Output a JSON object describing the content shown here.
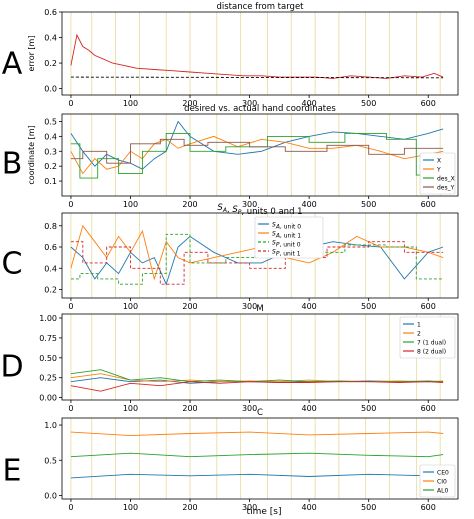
{
  "figure": {
    "xlabel": "time [s]",
    "xticks": [
      0,
      100,
      200,
      300,
      400,
      500,
      600
    ],
    "xlim": [
      -15,
      650
    ]
  },
  "chart_data": [
    {
      "panel": "A",
      "type": "line",
      "title": "distance from target",
      "ylabel": "error [m]",
      "ylim": [
        -0.05,
        0.6
      ],
      "yticks": [
        "0.0",
        "0.2",
        "0.4",
        "0.6"
      ],
      "legend": [],
      "series": [
        {
          "color": "#d62728",
          "x": [
            0,
            10,
            20,
            30,
            40,
            55,
            70,
            90,
            110,
            140,
            170,
            200,
            230,
            260,
            290,
            320,
            350,
            380,
            410,
            440,
            470,
            500,
            530,
            560,
            590,
            610,
            625
          ],
          "y": [
            0.18,
            0.42,
            0.33,
            0.3,
            0.26,
            0.23,
            0.2,
            0.18,
            0.16,
            0.15,
            0.14,
            0.13,
            0.12,
            0.11,
            0.1,
            0.1,
            0.09,
            0.09,
            0.09,
            0.08,
            0.1,
            0.09,
            0.08,
            0.1,
            0.09,
            0.12,
            0.09
          ]
        },
        {
          "color": "#000000",
          "dashed": true,
          "x": [
            0,
            625
          ],
          "y": [
            0.09,
            0.085
          ]
        }
      ]
    },
    {
      "panel": "B",
      "type": "line",
      "title": "desired vs. actual hand coordinates",
      "ylabel": "coordinate [m]",
      "ylim": [
        0.0,
        0.55
      ],
      "yticks": [
        "0.1",
        "0.2",
        "0.3",
        "0.4",
        "0.5"
      ],
      "legend": [
        "X",
        "Y",
        "des_X",
        "des_Y"
      ],
      "series": [
        {
          "name": "X",
          "color": "#1f77b4",
          "x": [
            0,
            20,
            40,
            60,
            80,
            100,
            120,
            140,
            160,
            180,
            200,
            240,
            280,
            320,
            360,
            400,
            440,
            480,
            520,
            560,
            600,
            625
          ],
          "y": [
            0.42,
            0.3,
            0.2,
            0.28,
            0.24,
            0.22,
            0.18,
            0.25,
            0.3,
            0.5,
            0.4,
            0.3,
            0.28,
            0.3,
            0.36,
            0.4,
            0.43,
            0.42,
            0.4,
            0.38,
            0.42,
            0.45
          ]
        },
        {
          "name": "Y",
          "color": "#ff7f0e",
          "x": [
            0,
            20,
            40,
            60,
            80,
            100,
            120,
            140,
            160,
            180,
            200,
            240,
            280,
            320,
            360,
            400,
            440,
            480,
            520,
            560,
            600,
            625
          ],
          "y": [
            0.3,
            0.15,
            0.25,
            0.18,
            0.2,
            0.3,
            0.25,
            0.35,
            0.38,
            0.32,
            0.35,
            0.4,
            0.33,
            0.38,
            0.36,
            0.32,
            0.32,
            0.34,
            0.3,
            0.25,
            0.28,
            0.3
          ]
        },
        {
          "name": "des_X",
          "color": "#2ca02c",
          "x": [
            0,
            15,
            15,
            45,
            45,
            80,
            80,
            120,
            120,
            160,
            160,
            200,
            200,
            260,
            260,
            330,
            330,
            400,
            400,
            460,
            460,
            530,
            530,
            580,
            580,
            625
          ],
          "y": [
            0.35,
            0.35,
            0.12,
            0.12,
            0.25,
            0.25,
            0.15,
            0.15,
            0.3,
            0.3,
            0.42,
            0.42,
            0.3,
            0.3,
            0.33,
            0.33,
            0.4,
            0.4,
            0.36,
            0.36,
            0.42,
            0.42,
            0.38,
            0.38,
            0.14,
            0.14
          ]
        },
        {
          "name": "des_Y",
          "color": "#8c564b",
          "x": [
            0,
            20,
            20,
            60,
            60,
            100,
            100,
            150,
            150,
            190,
            190,
            230,
            230,
            300,
            300,
            360,
            360,
            430,
            430,
            500,
            500,
            560,
            560,
            625
          ],
          "y": [
            0.25,
            0.25,
            0.3,
            0.3,
            0.22,
            0.22,
            0.35,
            0.35,
            0.38,
            0.38,
            0.34,
            0.34,
            0.36,
            0.36,
            0.33,
            0.33,
            0.3,
            0.3,
            0.34,
            0.34,
            0.28,
            0.28,
            0.32,
            0.32
          ]
        }
      ]
    },
    {
      "panel": "C",
      "type": "line",
      "title": "S_A, S_P, units 0 and 1",
      "ylabel": "",
      "ylim": [
        0.12,
        0.92
      ],
      "yticks": [
        "0.2",
        "0.4",
        "0.6",
        "0.8"
      ],
      "legend": [
        "S_A, unit 0",
        "S_A, unit 1",
        "S_P, unit 0",
        "S_P, unit 1"
      ],
      "series": [
        {
          "name": "S_A, unit 0",
          "color": "#1f77b4",
          "x": [
            0,
            20,
            40,
            60,
            80,
            100,
            120,
            140,
            160,
            180,
            200,
            240,
            280,
            320,
            360,
            400,
            440,
            480,
            520,
            560,
            600,
            625
          ],
          "y": [
            0.6,
            0.5,
            0.3,
            0.45,
            0.35,
            0.55,
            0.45,
            0.5,
            0.25,
            0.6,
            0.7,
            0.55,
            0.45,
            0.45,
            0.55,
            0.6,
            0.65,
            0.62,
            0.6,
            0.3,
            0.55,
            0.6
          ]
        },
        {
          "name": "S_A, unit 1",
          "color": "#ff7f0e",
          "x": [
            0,
            20,
            40,
            60,
            80,
            100,
            120,
            140,
            160,
            180,
            200,
            240,
            280,
            320,
            360,
            400,
            440,
            480,
            520,
            560,
            600,
            625
          ],
          "y": [
            0.4,
            0.8,
            0.65,
            0.5,
            0.7,
            0.55,
            0.75,
            0.3,
            0.65,
            0.5,
            0.45,
            0.5,
            0.55,
            0.6,
            0.5,
            0.45,
            0.55,
            0.7,
            0.6,
            0.6,
            0.55,
            0.5
          ]
        },
        {
          "name": "S_P, unit 0",
          "color": "#2ca02c",
          "dashed": true,
          "x": [
            0,
            15,
            15,
            45,
            45,
            80,
            80,
            120,
            120,
            160,
            160,
            200,
            200,
            260,
            260,
            330,
            330,
            400,
            400,
            460,
            460,
            530,
            530,
            580,
            580,
            625
          ],
          "y": [
            0.3,
            0.3,
            0.35,
            0.35,
            0.3,
            0.3,
            0.25,
            0.25,
            0.35,
            0.35,
            0.72,
            0.72,
            0.45,
            0.45,
            0.5,
            0.5,
            0.6,
            0.6,
            0.55,
            0.55,
            0.62,
            0.62,
            0.6,
            0.6,
            0.3,
            0.3
          ]
        },
        {
          "name": "S_P, unit 1",
          "color": "#d62728",
          "dashed": true,
          "x": [
            0,
            20,
            20,
            60,
            60,
            100,
            100,
            150,
            150,
            190,
            190,
            230,
            230,
            300,
            300,
            360,
            360,
            430,
            430,
            500,
            500,
            560,
            560,
            625
          ],
          "y": [
            0.65,
            0.65,
            0.45,
            0.45,
            0.6,
            0.6,
            0.4,
            0.4,
            0.25,
            0.25,
            0.55,
            0.55,
            0.45,
            0.45,
            0.4,
            0.4,
            0.5,
            0.5,
            0.6,
            0.6,
            0.65,
            0.65,
            0.55,
            0.55
          ]
        }
      ]
    },
    {
      "panel": "D",
      "type": "line",
      "title": "M",
      "ylabel": "",
      "ylim": [
        -0.03,
        1.05
      ],
      "yticks": [
        "0.00",
        "0.25",
        "0.50",
        "0.75",
        "1.00"
      ],
      "legend": [
        "1",
        "2",
        "7 (1 dual)",
        "8 (2 dual)"
      ],
      "series": [
        {
          "name": "1",
          "color": "#1f77b4",
          "x": [
            0,
            50,
            100,
            150,
            200,
            250,
            300,
            350,
            400,
            450,
            500,
            550,
            600,
            625
          ],
          "y": [
            0.2,
            0.25,
            0.2,
            0.22,
            0.18,
            0.2,
            0.2,
            0.19,
            0.2,
            0.2,
            0.21,
            0.2,
            0.2,
            0.2
          ]
        },
        {
          "name": "2",
          "color": "#ff7f0e",
          "x": [
            0,
            50,
            100,
            150,
            200,
            250,
            300,
            350,
            400,
            450,
            500,
            550,
            600,
            625
          ],
          "y": [
            0.25,
            0.3,
            0.22,
            0.2,
            0.22,
            0.2,
            0.21,
            0.2,
            0.22,
            0.2,
            0.2,
            0.21,
            0.2,
            0.21
          ]
        },
        {
          "name": "7 (1 dual)",
          "color": "#2ca02c",
          "x": [
            0,
            50,
            100,
            150,
            200,
            250,
            300,
            350,
            400,
            450,
            500,
            550,
            600,
            625
          ],
          "y": [
            0.3,
            0.35,
            0.22,
            0.25,
            0.2,
            0.22,
            0.2,
            0.22,
            0.2,
            0.21,
            0.2,
            0.2,
            0.21,
            0.2
          ]
        },
        {
          "name": "8 (2 dual)",
          "color": "#d62728",
          "x": [
            0,
            50,
            100,
            150,
            200,
            250,
            300,
            350,
            400,
            450,
            500,
            550,
            600,
            625
          ],
          "y": [
            0.15,
            0.08,
            0.18,
            0.15,
            0.2,
            0.18,
            0.2,
            0.19,
            0.19,
            0.2,
            0.2,
            0.19,
            0.2,
            0.19
          ]
        }
      ]
    },
    {
      "panel": "E",
      "type": "line",
      "title": "C",
      "ylabel": "",
      "ylim": [
        -0.05,
        1.1
      ],
      "yticks": [
        "0.0",
        "0.5",
        "1.0"
      ],
      "legend": [
        "CE0",
        "CI0",
        "AL0"
      ],
      "series": [
        {
          "name": "CE0",
          "color": "#1f77b4",
          "x": [
            0,
            100,
            200,
            300,
            400,
            500,
            600,
            625
          ],
          "y": [
            0.25,
            0.3,
            0.28,
            0.3,
            0.27,
            0.3,
            0.28,
            0.3
          ]
        },
        {
          "name": "CI0",
          "color": "#ff7f0e",
          "x": [
            0,
            100,
            200,
            300,
            400,
            500,
            600,
            625
          ],
          "y": [
            0.9,
            0.85,
            0.88,
            0.9,
            0.86,
            0.88,
            0.9,
            0.88
          ]
        },
        {
          "name": "AL0",
          "color": "#2ca02c",
          "x": [
            0,
            100,
            200,
            300,
            400,
            500,
            600,
            625
          ],
          "y": [
            0.55,
            0.6,
            0.55,
            0.58,
            0.6,
            0.57,
            0.55,
            0.58
          ]
        }
      ]
    }
  ],
  "panel_letters": [
    "A",
    "B",
    "C",
    "D",
    "E"
  ],
  "target_change_times": [
    0,
    35,
    75,
    115,
    160,
    200,
    245,
    285,
    330,
    370,
    410,
    450,
    495,
    535,
    580,
    620
  ]
}
